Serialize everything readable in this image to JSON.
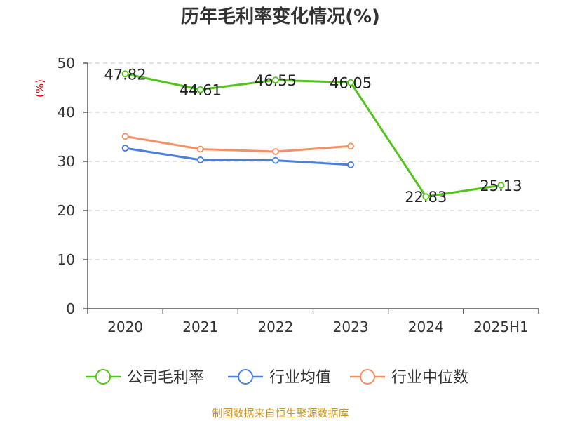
{
  "chart_data": {
    "type": "line",
    "title": "历年毛利率变化情况(%)",
    "ylabel": "(%)",
    "categories": [
      "2020",
      "2021",
      "2022",
      "2023",
      "2024",
      "2025H1"
    ],
    "ylim": [
      0,
      50
    ],
    "yticks": [
      0,
      10,
      20,
      30,
      40,
      50
    ],
    "grid": true,
    "legend_position": "bottom",
    "series": [
      {
        "name": "公司毛利率",
        "color": "#52c41a",
        "values": [
          47.82,
          44.61,
          46.55,
          46.05,
          22.83,
          25.13
        ],
        "labels": [
          "47.82",
          "44.61",
          "46.55",
          "46.05",
          "22.83",
          "25.13"
        ]
      },
      {
        "name": "行业均值",
        "color": "#4a7fdc",
        "values": [
          32.7,
          30.3,
          30.2,
          29.3,
          null,
          null
        ]
      },
      {
        "name": "行业中位数",
        "color": "#f59062",
        "values": [
          35.1,
          32.5,
          32.0,
          33.1,
          null,
          null
        ]
      }
    ]
  },
  "source": "制图数据来自恒生聚源数据库"
}
